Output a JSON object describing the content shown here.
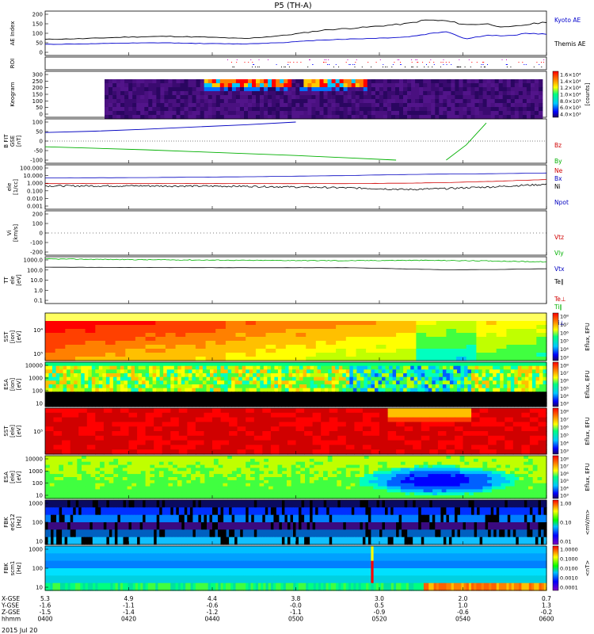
{
  "title": "P5 (TH-A)",
  "date_label": "2015 Jul 20",
  "colors": {
    "ae_kyoto": "#000000",
    "ae_themis": "#0000cc",
    "bz": "#d00000",
    "by": "#00b000",
    "bx": "#0000c0",
    "ne": "#d00000",
    "ni": "#000000",
    "npot": "#0000c0",
    "te": "#d00000",
    "ti": "#00b000"
  },
  "chart_data": [
    {
      "type": "line",
      "panel": "ae",
      "ylabel": "AE Index",
      "yticks": [
        "200",
        "150",
        "100",
        "50",
        "0"
      ],
      "ylim": [
        0,
        200
      ],
      "x": [
        0.0,
        0.08,
        0.16,
        0.24,
        0.32,
        0.4,
        0.48,
        0.56,
        0.64,
        0.72,
        0.76,
        0.8,
        0.84,
        0.88,
        0.92,
        0.96,
        1.0
      ],
      "series": [
        {
          "name": "Kyoto AE",
          "values": [
            68,
            72,
            80,
            84,
            80,
            72,
            90,
            118,
            132,
            150,
            170,
            165,
            145,
            150,
            130,
            145,
            160
          ]
        },
        {
          "name": "Themis AE",
          "values": [
            42,
            44,
            48,
            50,
            46,
            44,
            52,
            66,
            72,
            80,
            95,
            110,
            70,
            90,
            85,
            100,
            95
          ]
        }
      ],
      "legend": [
        "Kyoto AE",
        "Themis AE"
      ]
    },
    {
      "type": "heatmap",
      "panel": "roi",
      "ylabel": "ROI"
    },
    {
      "type": "heatmap",
      "panel": "keogram",
      "ylabel": "Keogram",
      "yticks": [
        "300",
        "250",
        "200",
        "150",
        "100",
        "50",
        "0"
      ],
      "colorbar_ticks": [
        "1.6×10⁴",
        "1.4×10⁴",
        "1.2×10⁴",
        "1.0×10⁴",
        "8.0×10³",
        "6.0×10³",
        "4.0×10³"
      ],
      "colorbar_label": "[counts]"
    },
    {
      "type": "line",
      "panel": "bfield",
      "ylabel": [
        "B FIT",
        "GSE",
        "[nT]"
      ],
      "yticks": [
        "100",
        "50",
        "0",
        "-50",
        "-100"
      ],
      "ylim": [
        -100,
        100
      ],
      "x": [
        0.0,
        0.1,
        0.2,
        0.3,
        0.4,
        0.5,
        0.6,
        0.7,
        0.78,
        0.8,
        0.84,
        0.88
      ],
      "series": [
        {
          "name": "Bz",
          "values": [
            null,
            null,
            null,
            null,
            null,
            null,
            null,
            null,
            null,
            null,
            null,
            null
          ]
        },
        {
          "name": "By",
          "values": [
            -30,
            -38,
            -46,
            -56,
            -66,
            -76,
            -88,
            -100,
            null,
            null,
            null,
            null
          ]
        },
        {
          "name": "Bx",
          "values": [
            45,
            52,
            62,
            74,
            86,
            100,
            null,
            null,
            null,
            null,
            null,
            null
          ]
        }
      ],
      "by_late": {
        "x": [
          0.8,
          0.84,
          0.88
        ],
        "values": [
          -100,
          -20,
          95
        ]
      },
      "legend": [
        "Bz",
        "By",
        "Bx"
      ]
    },
    {
      "type": "line",
      "panel": "density",
      "ylabel": [
        "ele",
        "[1/cc]"
      ],
      "yticks": [
        "100.000",
        "10.000",
        "1.000",
        "0.100",
        "0.010",
        "0.001"
      ],
      "ylim": [
        0.001,
        100
      ],
      "x": [
        0.0,
        0.2,
        0.4,
        0.6,
        0.72,
        0.8,
        0.9,
        1.0
      ],
      "series": [
        {
          "name": "Ne",
          "values": [
            0.9,
            0.9,
            0.9,
            0.9,
            1.0,
            1.2,
            1.8,
            3.0
          ]
        },
        {
          "name": "Ni",
          "values": [
            0.45,
            0.45,
            0.4,
            0.25,
            0.15,
            0.2,
            0.35,
            0.7
          ]
        },
        {
          "name": "Npot",
          "values": [
            5,
            5.5,
            7,
            10,
            14,
            16,
            18,
            22
          ]
        }
      ],
      "legend": [
        "Ne",
        "Ni",
        "Npot"
      ]
    },
    {
      "type": "line",
      "panel": "velocity",
      "ylabel": [
        "Vi",
        "[km/s]"
      ],
      "yticks": [
        "200",
        "100",
        "0",
        "-100",
        "-200"
      ],
      "ylim": [
        -250,
        250
      ],
      "legend": [
        "Vtz",
        "Vly",
        "Vtx"
      ]
    },
    {
      "type": "line",
      "panel": "temperature",
      "ylabel": [
        "TT",
        "ele",
        "[eV]"
      ],
      "yticks": [
        "1000.0",
        "100.0",
        "10.0",
        "1.0",
        "0.1"
      ],
      "ylim": [
        0.05,
        3000
      ],
      "x": [
        0.0,
        0.2,
        0.4,
        0.6,
        0.72,
        0.8,
        0.9,
        1.0
      ],
      "series": [
        {
          "name": "Te∥",
          "values": [
            260,
            240,
            230,
            230,
            170,
            140,
            150,
            180
          ]
        },
        {
          "name": "Ti",
          "values": [
            1800,
            1500,
            1300,
            1200,
            1300,
            1250,
            1100,
            900
          ]
        }
      ],
      "legend": [
        "Te∥",
        "Te⊥",
        "Ti∥",
        "Ti⊥"
      ]
    },
    {
      "type": "heatmap",
      "panel": "sst_ion",
      "ylabel": [
        "SST",
        "[ion]",
        "[eV]"
      ],
      "yticks": [
        "10⁴",
        "10⁵"
      ],
      "colorbar_ticks": [
        "10⁸",
        "10⁷",
        "10⁶",
        "10⁵",
        "10⁴",
        "10³"
      ],
      "colorbar_label": "Eflux, EFU"
    },
    {
      "type": "heatmap",
      "panel": "esa_ion",
      "ylabel": [
        "ESA",
        "[ion]",
        "[eV]"
      ],
      "yticks": [
        "10000",
        "1000",
        "100",
        "10"
      ],
      "colorbar_ticks": [
        "10⁸",
        "10⁷",
        "10⁶",
        "10⁵",
        "10⁴",
        "10³"
      ],
      "colorbar_label": "Eflux, EFU"
    },
    {
      "type": "heatmap",
      "panel": "sst_ele",
      "ylabel": [
        "SST",
        "[ele]",
        "[eV]"
      ],
      "yticks": [
        "10⁵"
      ],
      "colorbar_ticks": [
        "10⁸",
        "10⁷",
        "10⁶",
        "10⁵",
        "10⁴",
        "10³"
      ],
      "colorbar_label": "Eflux, EFU"
    },
    {
      "type": "heatmap",
      "panel": "esa_ele",
      "ylabel": [
        "ESA",
        "[ele]",
        "[eV]"
      ],
      "yticks": [
        "10000",
        "1000",
        "100",
        "10"
      ],
      "colorbar_ticks": [
        "10⁸",
        "10⁷",
        "10⁶",
        "10⁵",
        "10⁴",
        "10³"
      ],
      "colorbar_label": "Eflux, EFU"
    },
    {
      "type": "heatmap",
      "panel": "fbk_e",
      "ylabel": [
        "FBK",
        "edc12",
        "[Hz]"
      ],
      "yticks": [
        "1000",
        "100",
        "10"
      ],
      "colorbar_ticks": [
        "1.00",
        "0.10",
        "0.01"
      ],
      "colorbar_label": "<mV/m>"
    },
    {
      "type": "heatmap",
      "panel": "fbk_b",
      "ylabel": [
        "FBK",
        "scm1",
        "[Hz]"
      ],
      "yticks": [
        "1000",
        "100",
        "10"
      ],
      "colorbar_ticks": [
        "1.0000",
        "0.1000",
        "0.0100",
        "0.0010",
        "0.0001"
      ],
      "colorbar_label": "<nT>"
    }
  ],
  "bottom_axis": {
    "row_labels": [
      "X-GSE",
      "Y-GSE",
      "Z-GSE",
      "hhmm"
    ],
    "ticks": [
      {
        "x": [
          "5.3",
          "-1.6",
          "-1.5",
          "0400"
        ]
      },
      {
        "x": [
          "4.9",
          "-1.1",
          "-1.4",
          "0420"
        ]
      },
      {
        "x": [
          "4.4",
          "-0.6",
          "-1.2",
          "0440"
        ]
      },
      {
        "x": [
          "3.8",
          "-0.0",
          "-1.1",
          "0500"
        ]
      },
      {
        "x": [
          "3.0",
          "0.5",
          "-0.9",
          "0520"
        ]
      },
      {
        "x": [
          "2.0",
          "1.0",
          "-0.6",
          "0540"
        ]
      },
      {
        "x": [
          "0.7",
          "1.3",
          "-0.2",
          "0600"
        ]
      }
    ]
  }
}
